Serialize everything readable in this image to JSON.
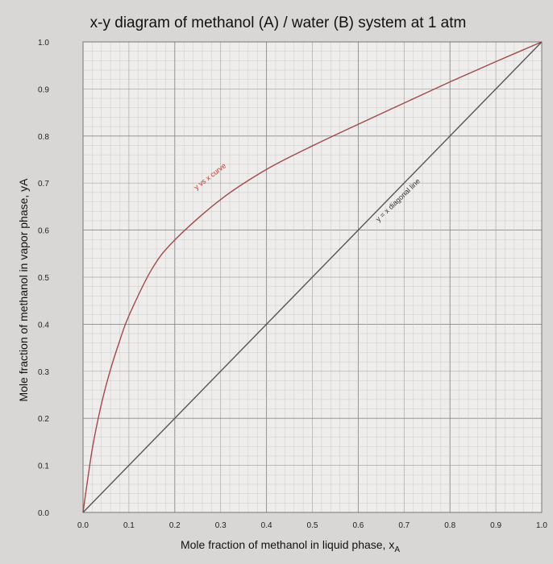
{
  "chart_data": {
    "type": "line",
    "title": "x-y diagram of methanol (A) / water (B) system at 1 atm",
    "xlabel": "Mole fraction of methanol in liquid phase, x",
    "xlabel_sub": "A",
    "ylabel": "Mole fraction of methanol in vapor phase, yA",
    "xlim": [
      0,
      1
    ],
    "ylim": [
      0,
      1
    ],
    "x_ticks": [
      "0.0",
      "0.1",
      "0.2",
      "0.3",
      "0.4",
      "0.5",
      "0.6",
      "0.7",
      "0.8",
      "0.9",
      "1.0"
    ],
    "y_ticks": [
      "0.0",
      "0.1",
      "0.2",
      "0.3",
      "0.4",
      "0.5",
      "0.6",
      "0.7",
      "0.8",
      "0.9",
      "1.0"
    ],
    "grid": true,
    "series": [
      {
        "name": "y vs x curve",
        "color": "#a04a4a",
        "x": [
          0.0,
          0.02,
          0.04,
          0.06,
          0.08,
          0.1,
          0.15,
          0.2,
          0.3,
          0.4,
          0.5,
          0.6,
          0.7,
          0.8,
          0.9,
          1.0
        ],
        "y": [
          0.0,
          0.134,
          0.23,
          0.304,
          0.365,
          0.418,
          0.517,
          0.579,
          0.665,
          0.729,
          0.779,
          0.825,
          0.87,
          0.915,
          0.958,
          1.0
        ]
      },
      {
        "name": "y = x diagonal line",
        "color": "#555555",
        "x": [
          0.0,
          1.0
        ],
        "y": [
          0.0,
          1.0
        ]
      }
    ],
    "annotations": [
      {
        "text": "y vs x curve",
        "x": 0.28,
        "y": 0.71,
        "color": "#c0392b"
      },
      {
        "text": "y = x diagonal line",
        "x": 0.69,
        "y": 0.66,
        "color": "#333333"
      }
    ]
  }
}
